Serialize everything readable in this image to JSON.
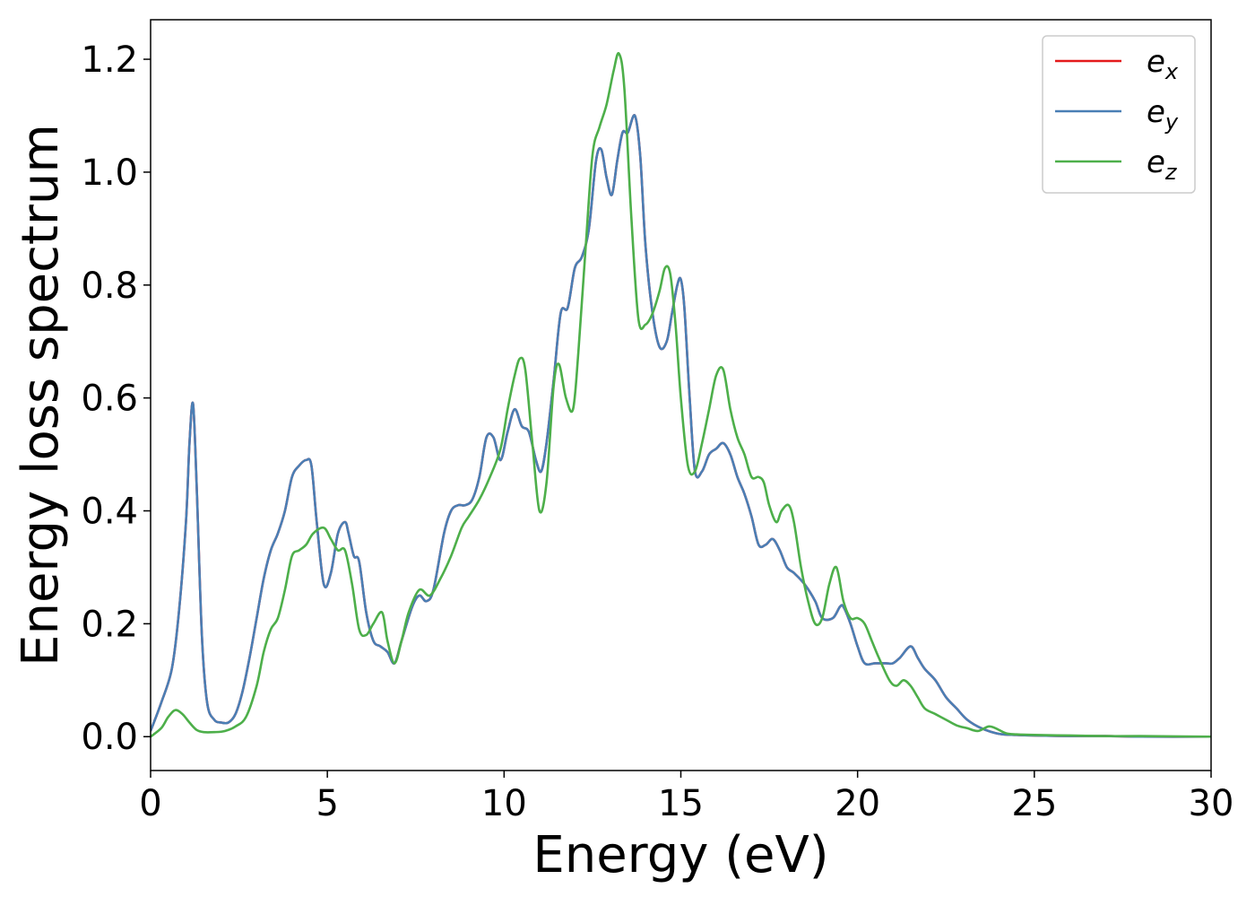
{
  "chart_data": {
    "type": "line",
    "xlabel": "Energy (eV)",
    "ylabel": "Energy loss spectrum",
    "xlim": [
      0,
      30
    ],
    "ylim": [
      -0.06,
      1.27
    ],
    "xticks": [
      0,
      5,
      10,
      15,
      20,
      25,
      30
    ],
    "xtick_labels": [
      "0",
      "5",
      "10",
      "15",
      "20",
      "25",
      "30"
    ],
    "yticks": [
      0.0,
      0.2,
      0.4,
      0.6,
      0.8,
      1.0,
      1.2
    ],
    "ytick_labels": [
      "0.0",
      "0.2",
      "0.4",
      "0.6",
      "0.8",
      "1.0",
      "1.2"
    ],
    "grid": false,
    "legend_position": "top-right",
    "series": [
      {
        "name": "e_x",
        "label_base": "e",
        "label_sub": "x",
        "color": "#e41a1c",
        "x": [
          0,
          0.3,
          0.6,
          0.8,
          1.0,
          1.1,
          1.2,
          1.3,
          1.45,
          1.6,
          1.8,
          2.0,
          2.2,
          2.4,
          2.6,
          2.8,
          3.0,
          3.2,
          3.4,
          3.6,
          3.8,
          4.0,
          4.2,
          4.4,
          4.55,
          4.7,
          4.9,
          5.1,
          5.3,
          5.5,
          5.6,
          5.75,
          5.9,
          6.1,
          6.3,
          6.5,
          6.7,
          6.9,
          7.1,
          7.4,
          7.6,
          7.8,
          8.0,
          8.3,
          8.5,
          8.7,
          8.9,
          9.1,
          9.3,
          9.5,
          9.7,
          9.9,
          10.1,
          10.3,
          10.5,
          10.7,
          10.9,
          11.05,
          11.2,
          11.4,
          11.6,
          11.8,
          12.0,
          12.2,
          12.4,
          12.6,
          12.75,
          12.9,
          13.05,
          13.2,
          13.35,
          13.5,
          13.7,
          13.85,
          14.0,
          14.2,
          14.4,
          14.6,
          14.75,
          14.9,
          15.0,
          15.1,
          15.25,
          15.4,
          15.6,
          15.8,
          16.0,
          16.2,
          16.4,
          16.6,
          16.8,
          17.0,
          17.2,
          17.4,
          17.6,
          17.8,
          18.0,
          18.2,
          18.5,
          18.8,
          19.0,
          19.3,
          19.5,
          19.6,
          19.8,
          20.0,
          20.2,
          20.5,
          20.8,
          21.0,
          21.2,
          21.5,
          21.7,
          21.9,
          22.2,
          22.5,
          22.8,
          23.1,
          23.5,
          24.0,
          24.5,
          25.0,
          26.0,
          27.0,
          28.0,
          30.0
        ],
        "y": [
          0.01,
          0.06,
          0.12,
          0.22,
          0.38,
          0.52,
          0.59,
          0.45,
          0.18,
          0.06,
          0.03,
          0.025,
          0.025,
          0.04,
          0.08,
          0.14,
          0.21,
          0.28,
          0.33,
          0.36,
          0.4,
          0.46,
          0.48,
          0.49,
          0.48,
          0.38,
          0.27,
          0.29,
          0.36,
          0.38,
          0.36,
          0.32,
          0.31,
          0.22,
          0.17,
          0.16,
          0.15,
          0.13,
          0.17,
          0.23,
          0.25,
          0.24,
          0.26,
          0.36,
          0.4,
          0.41,
          0.41,
          0.42,
          0.46,
          0.53,
          0.53,
          0.49,
          0.54,
          0.58,
          0.55,
          0.54,
          0.49,
          0.47,
          0.52,
          0.63,
          0.75,
          0.76,
          0.83,
          0.85,
          0.9,
          1.02,
          1.04,
          0.99,
          0.96,
          1.02,
          1.07,
          1.07,
          1.1,
          1.03,
          0.87,
          0.75,
          0.69,
          0.7,
          0.75,
          0.8,
          0.81,
          0.76,
          0.6,
          0.47,
          0.47,
          0.5,
          0.51,
          0.52,
          0.5,
          0.46,
          0.43,
          0.39,
          0.34,
          0.34,
          0.35,
          0.33,
          0.3,
          0.29,
          0.27,
          0.24,
          0.21,
          0.21,
          0.23,
          0.23,
          0.2,
          0.16,
          0.13,
          0.13,
          0.13,
          0.13,
          0.14,
          0.16,
          0.14,
          0.12,
          0.1,
          0.07,
          0.05,
          0.03,
          0.015,
          0.005,
          0.003,
          0.002,
          0.001,
          0.001,
          0.0,
          0.0
        ]
      },
      {
        "name": "e_y",
        "label_base": "e",
        "label_sub": "y",
        "color": "#4a7fb5",
        "x": [
          0,
          0.3,
          0.6,
          0.8,
          1.0,
          1.1,
          1.2,
          1.3,
          1.45,
          1.6,
          1.8,
          2.0,
          2.2,
          2.4,
          2.6,
          2.8,
          3.0,
          3.2,
          3.4,
          3.6,
          3.8,
          4.0,
          4.2,
          4.4,
          4.55,
          4.7,
          4.9,
          5.1,
          5.3,
          5.5,
          5.6,
          5.75,
          5.9,
          6.1,
          6.3,
          6.5,
          6.7,
          6.9,
          7.1,
          7.4,
          7.6,
          7.8,
          8.0,
          8.3,
          8.5,
          8.7,
          8.9,
          9.1,
          9.3,
          9.5,
          9.7,
          9.9,
          10.1,
          10.3,
          10.5,
          10.7,
          10.9,
          11.05,
          11.2,
          11.4,
          11.6,
          11.8,
          12.0,
          12.2,
          12.4,
          12.6,
          12.75,
          12.9,
          13.05,
          13.2,
          13.35,
          13.5,
          13.7,
          13.85,
          14.0,
          14.2,
          14.4,
          14.6,
          14.75,
          14.9,
          15.0,
          15.1,
          15.25,
          15.4,
          15.6,
          15.8,
          16.0,
          16.2,
          16.4,
          16.6,
          16.8,
          17.0,
          17.2,
          17.4,
          17.6,
          17.8,
          18.0,
          18.2,
          18.5,
          18.8,
          19.0,
          19.3,
          19.5,
          19.6,
          19.8,
          20.0,
          20.2,
          20.5,
          20.8,
          21.0,
          21.2,
          21.5,
          21.7,
          21.9,
          22.2,
          22.5,
          22.8,
          23.1,
          23.5,
          24.0,
          24.5,
          25.0,
          26.0,
          27.0,
          28.0,
          30.0
        ],
        "y": [
          0.01,
          0.06,
          0.12,
          0.22,
          0.38,
          0.52,
          0.59,
          0.45,
          0.18,
          0.06,
          0.03,
          0.025,
          0.025,
          0.04,
          0.08,
          0.14,
          0.21,
          0.28,
          0.33,
          0.36,
          0.4,
          0.46,
          0.48,
          0.49,
          0.48,
          0.38,
          0.27,
          0.29,
          0.36,
          0.38,
          0.36,
          0.32,
          0.31,
          0.22,
          0.17,
          0.16,
          0.15,
          0.13,
          0.17,
          0.23,
          0.25,
          0.24,
          0.26,
          0.36,
          0.4,
          0.41,
          0.41,
          0.42,
          0.46,
          0.53,
          0.53,
          0.49,
          0.54,
          0.58,
          0.55,
          0.54,
          0.49,
          0.47,
          0.52,
          0.63,
          0.75,
          0.76,
          0.83,
          0.85,
          0.9,
          1.02,
          1.04,
          0.99,
          0.96,
          1.02,
          1.07,
          1.07,
          1.1,
          1.03,
          0.87,
          0.75,
          0.69,
          0.7,
          0.75,
          0.8,
          0.81,
          0.76,
          0.6,
          0.47,
          0.47,
          0.5,
          0.51,
          0.52,
          0.5,
          0.46,
          0.43,
          0.39,
          0.34,
          0.34,
          0.35,
          0.33,
          0.3,
          0.29,
          0.27,
          0.24,
          0.21,
          0.21,
          0.23,
          0.23,
          0.2,
          0.16,
          0.13,
          0.13,
          0.13,
          0.13,
          0.14,
          0.16,
          0.14,
          0.12,
          0.1,
          0.07,
          0.05,
          0.03,
          0.015,
          0.005,
          0.003,
          0.002,
          0.001,
          0.001,
          0.0,
          0.0
        ]
      },
      {
        "name": "e_z",
        "label_base": "e",
        "label_sub": "z",
        "color": "#4daf4a",
        "x": [
          0,
          0.3,
          0.5,
          0.7,
          0.9,
          1.1,
          1.3,
          1.5,
          1.8,
          2.1,
          2.4,
          2.7,
          3.0,
          3.2,
          3.4,
          3.6,
          3.8,
          4.0,
          4.2,
          4.4,
          4.6,
          4.9,
          5.1,
          5.3,
          5.5,
          5.7,
          5.9,
          6.1,
          6.3,
          6.55,
          6.7,
          6.9,
          7.1,
          7.3,
          7.6,
          7.9,
          8.2,
          8.5,
          8.8,
          9.0,
          9.3,
          9.6,
          9.9,
          10.1,
          10.3,
          10.45,
          10.6,
          10.8,
          11.0,
          11.2,
          11.4,
          11.55,
          11.75,
          11.95,
          12.1,
          12.3,
          12.5,
          12.7,
          12.9,
          13.1,
          13.25,
          13.4,
          13.6,
          13.8,
          14.0,
          14.2,
          14.4,
          14.55,
          14.7,
          14.85,
          15.0,
          15.2,
          15.4,
          15.6,
          15.8,
          16.0,
          16.2,
          16.4,
          16.6,
          16.8,
          17.0,
          17.2,
          17.35,
          17.5,
          17.7,
          17.85,
          18.05,
          18.2,
          18.4,
          18.6,
          18.8,
          19.0,
          19.2,
          19.4,
          19.6,
          19.8,
          20.0,
          20.2,
          20.4,
          20.6,
          20.9,
          21.1,
          21.3,
          21.5,
          21.7,
          21.9,
          22.2,
          22.5,
          22.8,
          23.1,
          23.4,
          23.7,
          23.9,
          24.2,
          24.5,
          25.0,
          26.0,
          27.0,
          28.0,
          30.0
        ],
        "y": [
          0.0,
          0.015,
          0.035,
          0.047,
          0.04,
          0.025,
          0.012,
          0.008,
          0.008,
          0.01,
          0.018,
          0.035,
          0.09,
          0.15,
          0.19,
          0.21,
          0.26,
          0.32,
          0.33,
          0.34,
          0.36,
          0.37,
          0.35,
          0.33,
          0.33,
          0.27,
          0.19,
          0.18,
          0.2,
          0.22,
          0.17,
          0.13,
          0.17,
          0.22,
          0.26,
          0.25,
          0.28,
          0.32,
          0.37,
          0.39,
          0.42,
          0.46,
          0.51,
          0.58,
          0.64,
          0.67,
          0.65,
          0.52,
          0.4,
          0.45,
          0.62,
          0.66,
          0.6,
          0.58,
          0.68,
          0.86,
          1.03,
          1.08,
          1.12,
          1.18,
          1.21,
          1.15,
          0.92,
          0.74,
          0.73,
          0.75,
          0.79,
          0.83,
          0.82,
          0.73,
          0.6,
          0.48,
          0.47,
          0.52,
          0.58,
          0.64,
          0.65,
          0.58,
          0.53,
          0.5,
          0.46,
          0.46,
          0.45,
          0.41,
          0.38,
          0.4,
          0.41,
          0.38,
          0.3,
          0.24,
          0.2,
          0.21,
          0.27,
          0.3,
          0.24,
          0.21,
          0.21,
          0.2,
          0.17,
          0.14,
          0.1,
          0.09,
          0.1,
          0.09,
          0.07,
          0.05,
          0.04,
          0.03,
          0.02,
          0.015,
          0.01,
          0.018,
          0.015,
          0.006,
          0.004,
          0.003,
          0.002,
          0.001,
          0.001,
          0.0
        ]
      }
    ]
  }
}
